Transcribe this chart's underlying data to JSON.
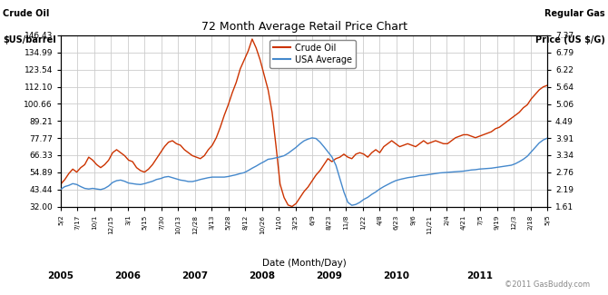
{
  "title": "72 Month Average Retail Price Chart",
  "xlabel": "Date (Month/Day)",
  "ylabel_left_line1": "Crude Oil",
  "ylabel_left_line2": "$US/barrel",
  "ylabel_right_line1": "Regular Gas",
  "ylabel_right_line2": "Price (US $/G)",
  "copyright": "©2011 GasBuddy.com",
  "legend_crude": "Crude Oil",
  "legend_gas": "USA Average",
  "crude_color": "#cc3300",
  "gas_color": "#4488cc",
  "bg_color": "#ffffff",
  "grid_color": "#cccccc",
  "ylim_left": [
    32.0,
    146.43
  ],
  "ylim_right": [
    1.61,
    7.37
  ],
  "yticks_left": [
    32.0,
    43.44,
    54.89,
    66.33,
    77.77,
    89.21,
    100.66,
    112.1,
    123.54,
    134.99,
    146.43
  ],
  "yticks_right": [
    1.61,
    2.19,
    2.76,
    3.34,
    3.91,
    4.49,
    5.06,
    5.64,
    6.22,
    6.79,
    7.37
  ],
  "xtick_labels": [
    "5/2",
    "7/17",
    "10/1",
    "12/15",
    "3/1",
    "5/15",
    "7/30",
    "10/13",
    "12/28",
    "3/13",
    "5/28",
    "8/12",
    "10/26",
    "1/10",
    "3/25",
    "6/9",
    "8/23",
    "11/8",
    "1/22",
    "4/8",
    "6/23",
    "9/6",
    "11/21",
    "2/4",
    "4/21",
    "7/5",
    "9/19",
    "12/3",
    "2/18",
    "5/5"
  ],
  "year_labels": [
    "2005",
    "2006",
    "2007",
    "2008",
    "2009",
    "2010",
    "2011"
  ],
  "year_tick_indices": [
    0,
    4,
    8,
    12,
    16,
    20,
    25
  ],
  "crude_values": [
    47,
    50,
    54,
    57,
    55,
    58,
    60,
    65,
    63,
    60,
    58,
    60,
    63,
    68,
    70,
    68,
    66,
    63,
    62,
    58,
    56,
    55,
    57,
    60,
    64,
    68,
    72,
    75,
    76,
    74,
    73,
    70,
    68,
    66,
    65,
    64,
    66,
    70,
    73,
    78,
    85,
    93,
    100,
    108,
    115,
    124,
    130,
    136,
    144,
    138,
    130,
    120,
    110,
    95,
    72,
    47,
    38,
    33,
    32,
    34,
    38,
    42,
    45,
    49,
    53,
    56,
    60,
    64,
    62,
    64,
    65,
    67,
    65,
    64,
    67,
    68,
    67,
    65,
    68,
    70,
    68,
    72,
    74,
    76,
    74,
    72,
    73,
    74,
    73,
    72,
    74,
    76,
    74,
    75,
    76,
    75,
    74,
    74,
    76,
    78,
    79,
    80,
    80,
    79,
    78,
    79,
    80,
    81,
    82,
    84,
    85,
    87,
    89,
    91,
    93,
    95,
    98,
    100,
    104,
    107,
    110,
    112,
    113
  ],
  "gas_values": [
    2.19,
    2.28,
    2.32,
    2.38,
    2.35,
    2.28,
    2.22,
    2.2,
    2.22,
    2.2,
    2.18,
    2.22,
    2.3,
    2.42,
    2.48,
    2.5,
    2.46,
    2.4,
    2.38,
    2.36,
    2.35,
    2.38,
    2.42,
    2.46,
    2.52,
    2.55,
    2.6,
    2.62,
    2.58,
    2.54,
    2.5,
    2.48,
    2.45,
    2.45,
    2.48,
    2.52,
    2.55,
    2.58,
    2.6,
    2.6,
    2.6,
    2.6,
    2.62,
    2.65,
    2.68,
    2.72,
    2.75,
    2.82,
    2.9,
    2.97,
    3.05,
    3.12,
    3.2,
    3.22,
    3.25,
    3.28,
    3.32,
    3.4,
    3.5,
    3.6,
    3.72,
    3.82,
    3.88,
    3.92,
    3.9,
    3.78,
    3.62,
    3.45,
    3.28,
    3.0,
    2.55,
    2.1,
    1.75,
    1.65,
    1.68,
    1.75,
    1.85,
    1.92,
    2.02,
    2.1,
    2.2,
    2.28,
    2.35,
    2.42,
    2.48,
    2.52,
    2.55,
    2.58,
    2.6,
    2.62,
    2.65,
    2.66,
    2.68,
    2.7,
    2.72,
    2.74,
    2.75,
    2.76,
    2.77,
    2.78,
    2.79,
    2.8,
    2.82,
    2.84,
    2.85,
    2.87,
    2.88,
    2.89,
    2.9,
    2.92,
    2.94,
    2.96,
    2.98,
    3.0,
    3.05,
    3.12,
    3.2,
    3.3,
    3.45,
    3.6,
    3.75,
    3.85,
    3.91
  ],
  "figsize": [
    6.7,
    3.25
  ],
  "dpi": 100
}
